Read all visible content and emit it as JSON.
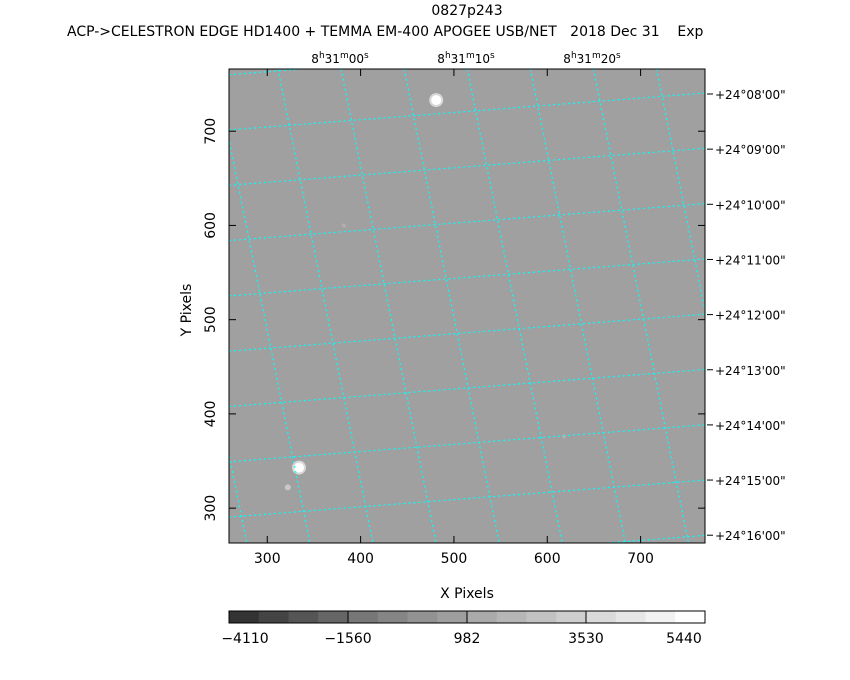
{
  "title": "0827p243",
  "subtitle": "ACP->CELESTRON EDGE HD1400 + TEMMA EM-400 APOGEE USB/NET   2018 Dec 31    Exp",
  "chart_data": {
    "type": "heatmap",
    "xlabel": "X Pixels",
    "ylabel": "Y Pixels",
    "xlim": [
      259,
      769
    ],
    "ylim": [
      263,
      766
    ],
    "x_ticks": [
      "300",
      "400",
      "500",
      "600",
      "700"
    ],
    "y_ticks": [
      "300",
      "400",
      "500",
      "600",
      "700"
    ],
    "x_tick_values": [
      300,
      400,
      500,
      600,
      700
    ],
    "y_tick_values": [
      300,
      400,
      500,
      600,
      700
    ],
    "ra_labels": [
      {
        "h": "8",
        "m": "31",
        "s": "00"
      },
      {
        "h": "8",
        "m": "31",
        "s": "10"
      },
      {
        "h": "8",
        "m": "31",
        "s": "20"
      }
    ],
    "dec_labels": [
      "+24°08'00\"",
      "+24°09'00\"",
      "+24°10'00\"",
      "+24°11'00\"",
      "+24°12'00\"",
      "+24°13'00\"",
      "+24°14'00\"",
      "+24°15'00\"",
      "+24°16'00\""
    ],
    "background_color": "#a0a0a0",
    "grid_color": "#00ffff",
    "stars": [
      {
        "x": 481,
        "y": 733,
        "size": "large"
      },
      {
        "x": 334,
        "y": 343,
        "size": "large"
      },
      {
        "x": 322,
        "y": 322,
        "size": "small"
      },
      {
        "x": 382,
        "y": 600,
        "size": "faint"
      },
      {
        "x": 618,
        "y": 376,
        "size": "faint"
      }
    ],
    "colorbar": {
      "tick_labels": [
        "-4110",
        "-1560",
        "982",
        "3530",
        "5440"
      ],
      "levels": 16,
      "colors": [
        "#333333",
        "#444444",
        "#555555",
        "#666666",
        "#777777",
        "#858585",
        "#929292",
        "#9e9e9e",
        "#aaaaaa",
        "#b6b6b6",
        "#c2c2c2",
        "#cecece",
        "#dadada",
        "#e6e6e6",
        "#f2f2f2",
        "#ffffff"
      ]
    }
  }
}
